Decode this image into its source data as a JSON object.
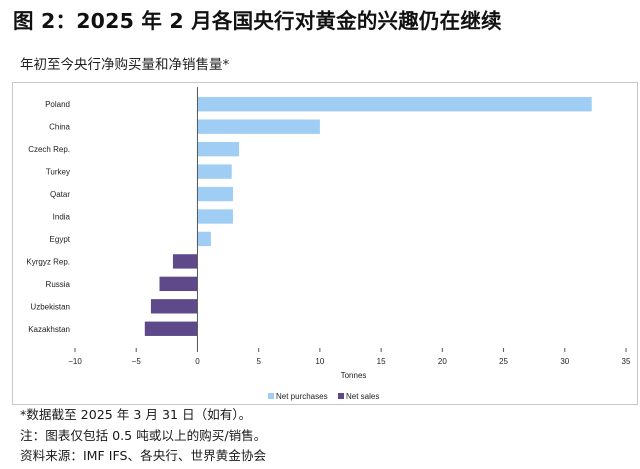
{
  "figure": {
    "title": "图 2：2025 年 2 月各国央行对黄金的兴趣仍在继续",
    "subtitle": "年初至今央行净购买量和净销售量*"
  },
  "notes": [
    "*数据截至 2025 年 3 月 31 日（如有）。",
    "注：图表仅包括 0.5 吨或以上的购买/销售。",
    "资料来源：IMF IFS、各央行、世界黄金协会"
  ],
  "chart_data": {
    "type": "bar",
    "orientation": "horizontal",
    "categories": [
      "Poland",
      "China",
      "Czech Rep.",
      "Turkey",
      "Qatar",
      "India",
      "Egypt",
      "Kyrgyz Rep.",
      "Russia",
      "Uzbekistan",
      "Kazakhstan"
    ],
    "values": [
      32.2,
      10.0,
      3.4,
      2.8,
      2.9,
      2.9,
      1.1,
      -2.0,
      -3.1,
      -3.8,
      -4.3
    ],
    "series": [
      {
        "name": "Net purchases",
        "color": "#9fcdf3"
      },
      {
        "name": "Net sales",
        "color": "#5e4a8b"
      }
    ],
    "xlabel": "Tonnes",
    "ylabel": "",
    "xlim": [
      -10,
      35
    ],
    "xticks": [
      -10,
      -5,
      0,
      5,
      10,
      15,
      20,
      25,
      30,
      35
    ],
    "xtick_labels": [
      "−10",
      "−5",
      "0",
      "5",
      "10",
      "15",
      "20",
      "25",
      "30",
      "35"
    ],
    "grid": false,
    "legend_position": "bottom-right"
  }
}
